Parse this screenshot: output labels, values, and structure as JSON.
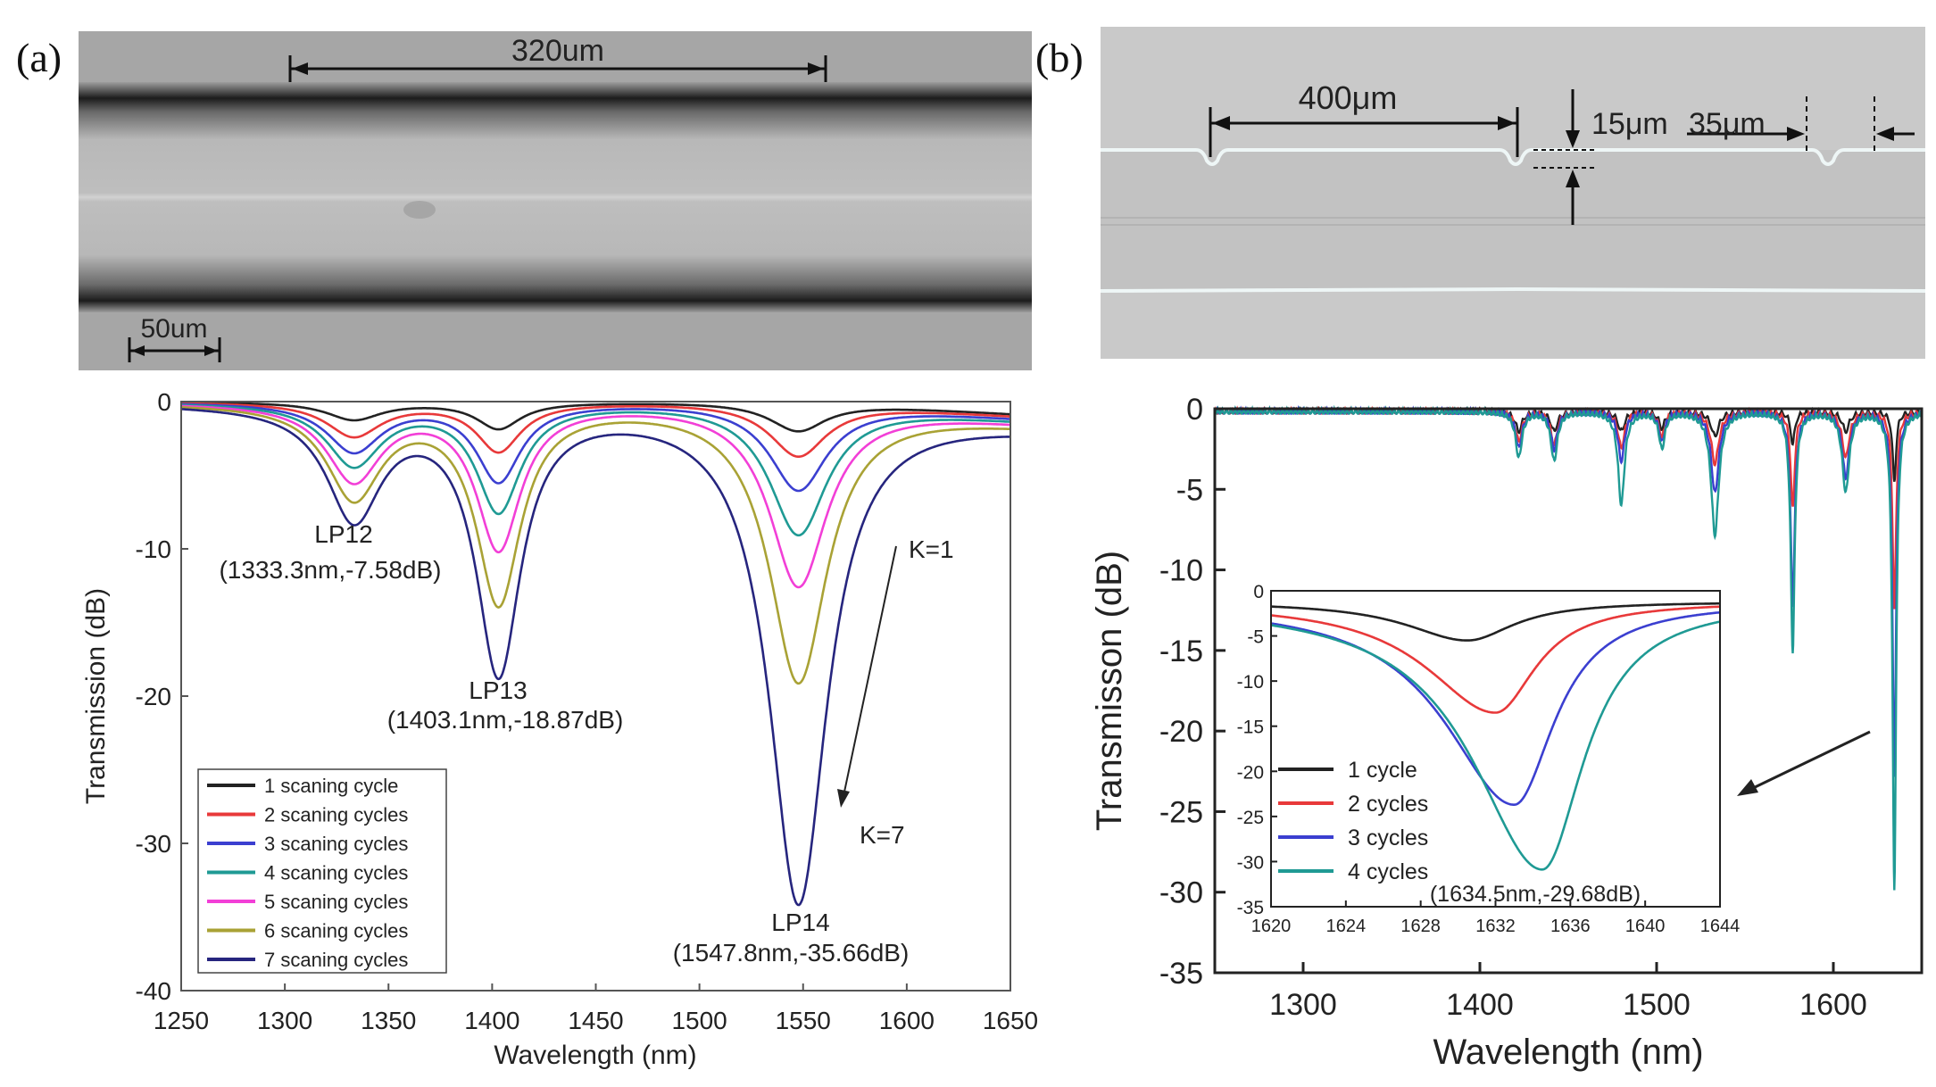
{
  "panels": {
    "a_label": "(a)",
    "b_label": "(b)"
  },
  "micrographs": {
    "a": {
      "scale_top": "320um",
      "scale_bottom": "50um"
    },
    "b": {
      "dim1": "400μm",
      "dim2": "15μm",
      "dim3": "35μm"
    }
  },
  "colors": {
    "black": "#222222",
    "red": "#e8393a",
    "blue": "#3b3fd0",
    "teal": "#1f9a94",
    "magenta": "#f23fd7",
    "olive": "#a9a235",
    "navy": "#26257e"
  },
  "chart_data": [
    {
      "id": "a",
      "type": "line",
      "title": "",
      "xlabel": "Wavelength (nm)",
      "ylabel": "Transmission (dB)",
      "xlim": [
        1250,
        1650
      ],
      "ylim": [
        -40,
        0
      ],
      "xticks": [
        "1250",
        "1300",
        "1350",
        "1400",
        "1450",
        "1500",
        "1550",
        "1600",
        "1650"
      ],
      "yticks": [
        "0",
        "-10",
        "-20",
        "-30",
        "-40"
      ],
      "legend_position": "bottom-left",
      "dips": [
        {
          "center": 1333.3,
          "width": 16
        },
        {
          "center": 1403.1,
          "width": 13
        },
        {
          "center": 1547.8,
          "width": 17
        }
      ],
      "series": [
        {
          "name": "1 scaning cycle",
          "color": "black",
          "depths": [
            1.2,
            1.8,
            2.0
          ],
          "tilt": 0.8
        },
        {
          "name": "2 scaning cycles",
          "color": "red",
          "depths": [
            2.3,
            3.3,
            3.7
          ],
          "tilt": 0.9
        },
        {
          "name": "3 scaning cycles",
          "color": "blue",
          "depths": [
            3.3,
            5.3,
            6.0
          ],
          "tilt": 1.0
        },
        {
          "name": "4 scaning cycles",
          "color": "teal",
          "depths": [
            4.2,
            7.3,
            9.0
          ],
          "tilt": 1.1
        },
        {
          "name": "5 scaning cycles",
          "color": "magenta",
          "depths": [
            5.2,
            9.8,
            12.5
          ],
          "tilt": 1.2
        },
        {
          "name": "6 scaning cycles",
          "color": "olive",
          "depths": [
            6.3,
            13.4,
            19.0
          ],
          "tilt": 1.3
        },
        {
          "name": "7 scaning cycles",
          "color": "navy",
          "depths": [
            7.58,
            18.0,
            34.0
          ],
          "tilt": 1.4
        }
      ],
      "annotations": [
        {
          "name": "LP12",
          "label": "LP12",
          "value": "(1333.3nm,-7.58dB)"
        },
        {
          "name": "LP13",
          "label": "LP13",
          "value": "(1403.1nm,-18.87dB)"
        },
        {
          "name": "LP14",
          "label": "LP14",
          "value": "(1547.8nm,-35.66dB)"
        },
        {
          "name": "K1",
          "label": "K=1"
        },
        {
          "name": "K7",
          "label": "K=7"
        }
      ]
    },
    {
      "id": "b",
      "type": "line",
      "title": "",
      "xlabel": "Wavelength (nm)",
      "ylabel": "Transmisson (dB)",
      "xlim": [
        1250,
        1650
      ],
      "ylim": [
        -35,
        0
      ],
      "xticks": [
        "1300",
        "1400",
        "1500",
        "1600"
      ],
      "yticks": [
        "0",
        "-5",
        "-10",
        "-15",
        "-20",
        "-25",
        "-30",
        "-35"
      ],
      "dips": [
        {
          "center": 1422,
          "width": 2.2
        },
        {
          "center": 1442,
          "width": 2.2
        },
        {
          "center": 1480,
          "width": 2.2
        },
        {
          "center": 1503,
          "width": 2.0
        },
        {
          "center": 1533,
          "width": 2.6
        },
        {
          "center": 1577,
          "width": 1.4
        },
        {
          "center": 1607,
          "width": 2.4
        },
        {
          "center": 1634.5,
          "width": 1.2
        }
      ],
      "series": [
        {
          "name": "1 cycle",
          "color": "black",
          "depths": [
            1.2,
            1.2,
            1.2,
            1.0,
            1.5,
            2.0,
            1.2,
            4.3
          ]
        },
        {
          "name": "2 cycles",
          "color": "red",
          "depths": [
            1.8,
            2.0,
            2.2,
            1.5,
            3.2,
            6.0,
            2.8,
            12.3
          ]
        },
        {
          "name": "3 cycles",
          "color": "blue",
          "depths": [
            2.2,
            2.3,
            3.0,
            1.8,
            5.0,
            12.0,
            4.0,
            22.5
          ]
        },
        {
          "name": "4 cycles",
          "color": "teal",
          "depths": [
            2.8,
            3.0,
            5.7,
            2.2,
            7.6,
            14.8,
            4.9,
            29.68
          ]
        }
      ],
      "inset": {
        "xlim": [
          1620,
          1644
        ],
        "ylim": [
          -35,
          0
        ],
        "xticks": [
          "1620",
          "1624",
          "1628",
          "1632",
          "1636",
          "1640",
          "1644"
        ],
        "yticks": [
          "0",
          "-5",
          "-10",
          "-15",
          "-20",
          "-25",
          "-30",
          "-35"
        ],
        "legend_position": "bottom-left",
        "series": [
          {
            "name": "1 cycle",
            "color": "black",
            "center": 1630.5,
            "depth": 4.3,
            "left_width": 4.0,
            "right_width": 3.0
          },
          {
            "name": "2 cycles",
            "color": "red",
            "center": 1632.0,
            "depth": 12.3,
            "left_width": 4.5,
            "right_width": 2.6
          },
          {
            "name": "3 cycles",
            "color": "blue",
            "center": 1633.0,
            "depth": 22.5,
            "left_width": 4.5,
            "right_width": 2.6
          },
          {
            "name": "4 cycles",
            "color": "teal",
            "center": 1634.5,
            "depth": 29.68,
            "left_width": 4.5,
            "right_width": 2.7
          }
        ],
        "annotation": "(1634.5nm,-29.68dB)"
      }
    }
  ]
}
